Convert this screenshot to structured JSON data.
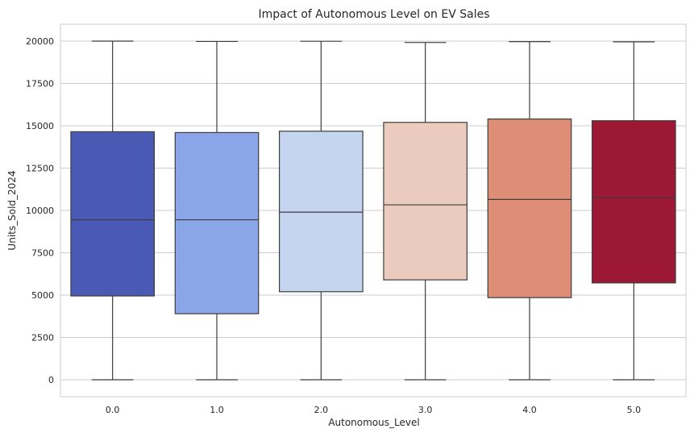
{
  "chart_data": {
    "type": "box",
    "title": "Impact of Autonomous Level on EV Sales",
    "xlabel": "Autonomous_Level",
    "ylabel": "Units_Sold_2024",
    "ylim": [
      -1000,
      21000
    ],
    "yticks": [
      0,
      2500,
      5000,
      7500,
      10000,
      12500,
      15000,
      17500,
      20000
    ],
    "grid": true,
    "categories": [
      "0.0",
      "1.0",
      "2.0",
      "3.0",
      "4.0",
      "5.0"
    ],
    "boxes": [
      {
        "min": 0,
        "q1": 4950,
        "median": 9450,
        "q3": 14650,
        "max": 20000,
        "color": "#4a5ab4"
      },
      {
        "min": 0,
        "q1": 3900,
        "median": 9450,
        "q3": 14600,
        "max": 19980,
        "color": "#8aa6e9"
      },
      {
        "min": 0,
        "q1": 5200,
        "median": 9900,
        "q3": 14680,
        "max": 19990,
        "color": "#c5d4ef"
      },
      {
        "min": 0,
        "q1": 5900,
        "median": 10330,
        "q3": 15200,
        "max": 19920,
        "color": "#eacbbd"
      },
      {
        "min": 0,
        "q1": 4850,
        "median": 10650,
        "q3": 15400,
        "max": 19970,
        "color": "#de8d77"
      },
      {
        "min": 0,
        "q1": 5720,
        "median": 10750,
        "q3": 15300,
        "max": 19960,
        "color": "#9c1834"
      }
    ]
  }
}
